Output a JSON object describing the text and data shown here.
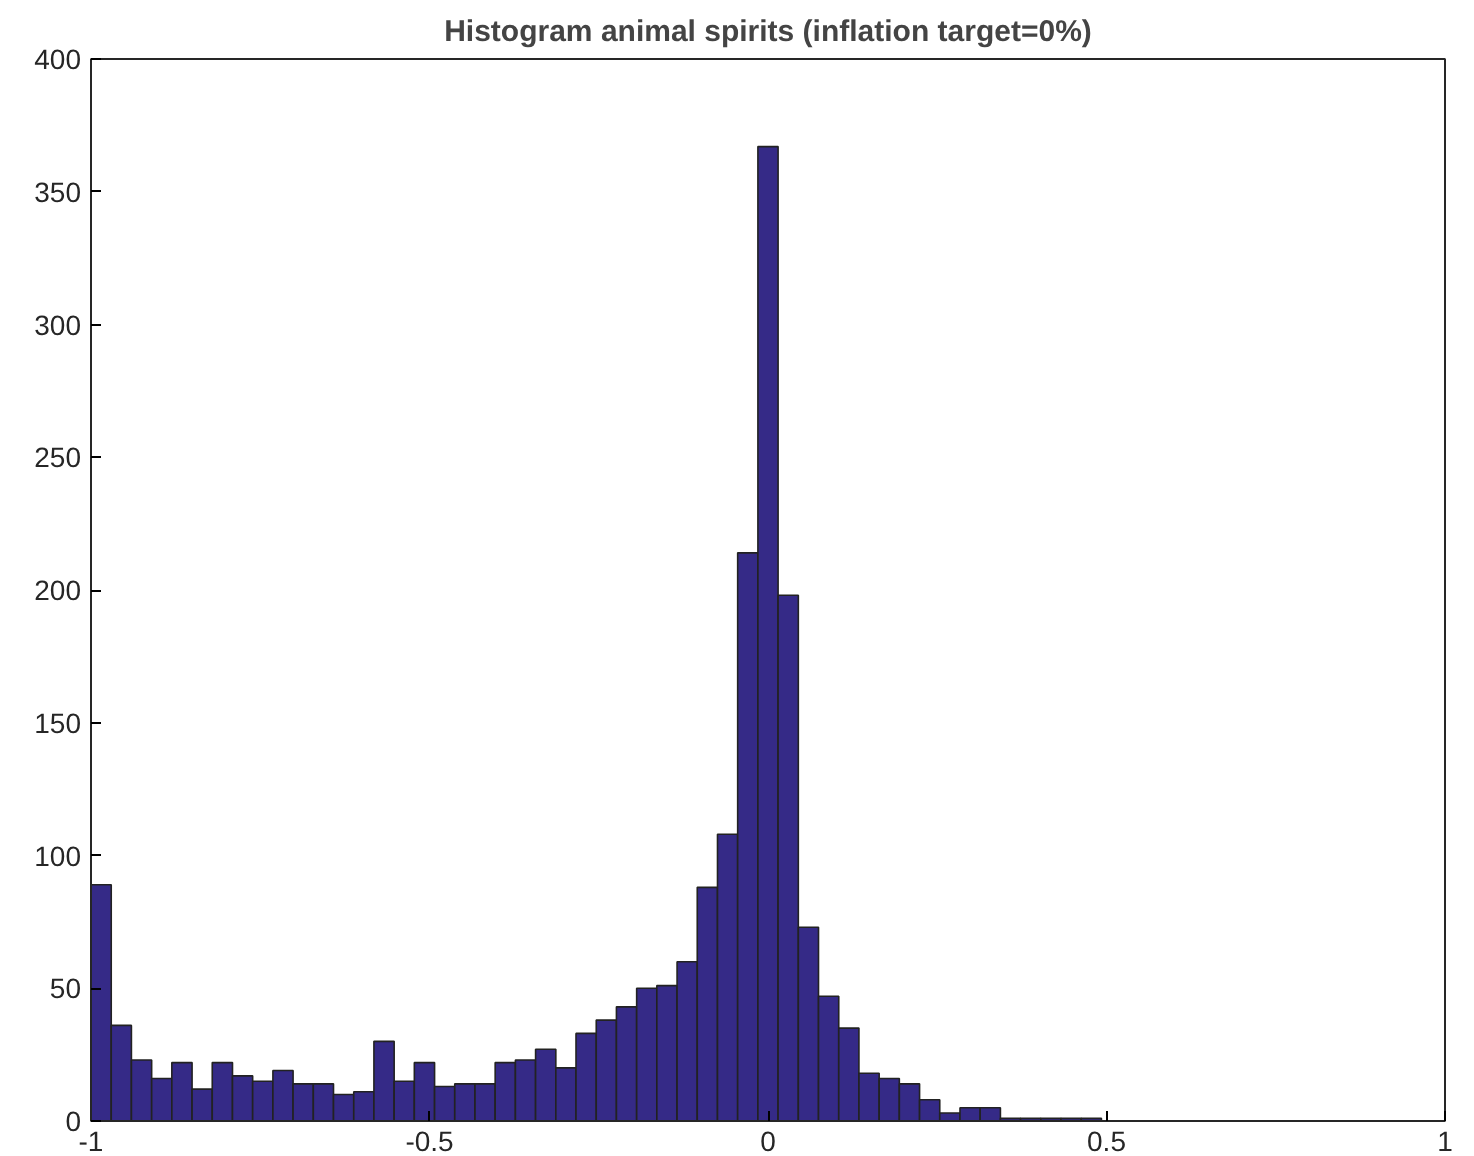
{
  "chart_data": {
    "type": "histogram",
    "title": "Histogram animal spirits (inflation target=0%)",
    "bins": [
      -1,
      -0.9701,
      -0.9403,
      -0.9104,
      -0.8806,
      -0.8507,
      -0.8209,
      -0.791,
      -0.7612,
      -0.7313,
      -0.7015,
      -0.6716,
      -0.6418,
      -0.6119,
      -0.5821,
      -0.5522,
      -0.5224,
      -0.4925,
      -0.4627,
      -0.4328,
      -0.403,
      -0.3731,
      -0.3433,
      -0.3134,
      -0.2836,
      -0.2537,
      -0.2239,
      -0.194,
      -0.1642,
      -0.1343,
      -0.1045,
      -0.0746,
      -0.0448,
      -0.0149,
      0.0149,
      0.0448,
      0.0746,
      0.1045,
      0.1343,
      0.1642,
      0.194,
      0.2239,
      0.2537,
      0.2836,
      0.3134,
      0.3433,
      0.3731,
      0.403,
      0.4328,
      0.4627,
      0.4925
    ],
    "values": [
      89,
      36,
      23,
      16,
      22,
      12,
      22,
      17,
      15,
      19,
      14,
      14,
      10,
      11,
      30,
      15,
      22,
      13,
      14,
      14,
      22,
      23,
      27,
      20,
      33,
      38,
      43,
      50,
      51,
      60,
      88,
      108,
      214,
      367,
      198,
      73,
      47,
      35,
      18,
      16,
      14,
      8,
      3,
      5,
      5,
      1,
      1,
      1,
      1,
      1
    ],
    "color": "#352a87",
    "xlim": [
      -1,
      1
    ],
    "xticks": [
      -1,
      -0.5,
      0,
      0.5,
      1
    ],
    "ylim": [
      0,
      400
    ],
    "yticks": [
      0,
      50,
      100,
      150,
      200,
      250,
      300,
      350,
      400
    ],
    "grid": false
  }
}
